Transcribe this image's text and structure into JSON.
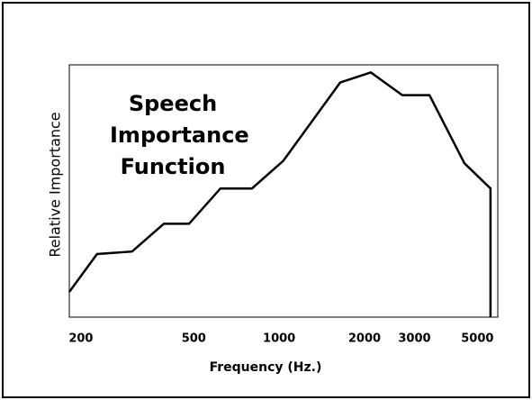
{
  "chart_data": {
    "type": "line",
    "title": "Speech Importance Function",
    "x_label": "Frequency (Hz.)",
    "y_label": "Relative Importance",
    "xscale": "log",
    "x": [
      182,
      228,
      303,
      392,
      481,
      621,
      802,
      1035,
      1641,
      2104,
      2718,
      3388,
      4500,
      5561,
      5561
    ],
    "values": [
      10,
      25,
      26,
      37,
      37,
      51,
      51,
      62,
      93,
      97,
      88,
      88,
      61,
      51,
      0
    ],
    "color": "#000000",
    "xlim": [
      182,
      5900
    ],
    "ylim": [
      0,
      100
    ],
    "xticks": [
      200,
      500,
      1000,
      2000,
      3000,
      5000
    ]
  }
}
